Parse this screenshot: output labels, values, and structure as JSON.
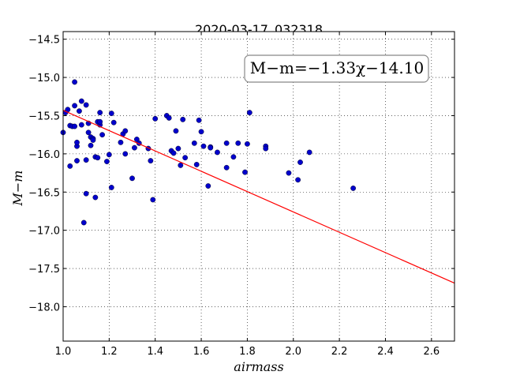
{
  "chart_data": {
    "type": "scatter",
    "title": "2020-03-17_032318",
    "xlabel": "airmass",
    "ylabel": "M−m",
    "xlim": [
      1.0,
      2.7
    ],
    "ylim": [
      -18.45,
      -14.4
    ],
    "grid": true,
    "x_ticks": [
      1.0,
      1.2,
      1.4,
      1.6,
      1.8,
      2.0,
      2.2,
      2.4,
      2.6
    ],
    "x_tick_labels": [
      "1.0",
      "1.2",
      "1.4",
      "1.6",
      "1.8",
      "2.0",
      "2.2",
      "2.4",
      "2.6"
    ],
    "y_ticks": [
      -14.5,
      -15.0,
      -15.5,
      -16.0,
      -16.5,
      -17.0,
      -17.5,
      -18.0
    ],
    "y_tick_labels": [
      "−14.5",
      "−15.0",
      "−15.5",
      "−16.0",
      "−16.5",
      "−17.0",
      "−17.5",
      "−18.0"
    ],
    "annotation": "M−m=−1.33χ−14.10",
    "fit": {
      "slope": -1.33,
      "intercept": -14.1,
      "x_range": [
        1.0,
        2.7
      ],
      "color": "#ff0000"
    },
    "point_color": "#0000cc",
    "series": [
      {
        "x": [
          1.0,
          1.01,
          1.02,
          1.03,
          1.03,
          1.04,
          1.05,
          1.05,
          1.05,
          1.06,
          1.06,
          1.06,
          1.07,
          1.08,
          1.08,
          1.09,
          1.1,
          1.1,
          1.1,
          1.11,
          1.11,
          1.12,
          1.12,
          1.13,
          1.13,
          1.14,
          1.14,
          1.15,
          1.15,
          1.16,
          1.16,
          1.16,
          1.17,
          1.19,
          1.2,
          1.21,
          1.21,
          1.22,
          1.25,
          1.26,
          1.27,
          1.27,
          1.3,
          1.31,
          1.32,
          1.33,
          1.37,
          1.38,
          1.39,
          1.4,
          1.45,
          1.46,
          1.47,
          1.48,
          1.49,
          1.5,
          1.51,
          1.52,
          1.53,
          1.57,
          1.58,
          1.59,
          1.6,
          1.61,
          1.63,
          1.64,
          1.64,
          1.67,
          1.71,
          1.71,
          1.74,
          1.76,
          1.79,
          1.8,
          1.81,
          1.88,
          1.88,
          1.98,
          2.02,
          2.03,
          2.07,
          2.26
        ],
        "y": [
          -15.72,
          -15.46,
          -15.42,
          -15.63,
          -16.16,
          -15.64,
          -15.37,
          -15.64,
          -15.06,
          -15.9,
          -15.85,
          -16.09,
          -15.44,
          -15.62,
          -15.31,
          -16.9,
          -15.36,
          -16.08,
          -16.52,
          -15.6,
          -15.72,
          -15.78,
          -15.89,
          -15.8,
          -15.82,
          -16.04,
          -16.57,
          -16.05,
          -15.58,
          -15.46,
          -15.62,
          -15.58,
          -15.75,
          -16.1,
          -16.01,
          -15.47,
          -16.44,
          -15.59,
          -15.85,
          -15.74,
          -15.7,
          -16.0,
          -16.32,
          -15.92,
          -15.81,
          -15.86,
          -15.93,
          -16.09,
          -16.6,
          -15.54,
          -15.5,
          -15.53,
          -15.96,
          -15.99,
          -15.7,
          -15.93,
          -16.15,
          -15.55,
          -16.05,
          -15.86,
          -16.14,
          -15.56,
          -15.71,
          -15.9,
          -16.42,
          -15.91,
          -15.92,
          -15.98,
          -15.86,
          -16.18,
          -16.04,
          -15.86,
          -16.24,
          -15.87,
          -15.46,
          -15.9,
          -15.93,
          -16.25,
          -16.34,
          -16.11,
          -15.98,
          -16.45
        ]
      }
    ]
  }
}
